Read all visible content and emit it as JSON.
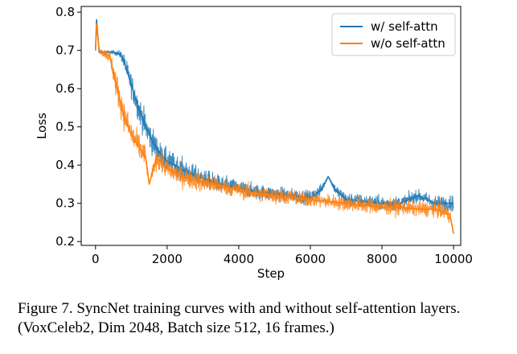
{
  "chart_data": {
    "type": "line",
    "xlabel": "Step",
    "ylabel": "Loss",
    "xlim": [
      -400,
      10200
    ],
    "ylim": [
      0.19,
      0.815
    ],
    "xticks": [
      0,
      2000,
      4000,
      6000,
      8000,
      10000
    ],
    "yticks": [
      0.2,
      0.3,
      0.4,
      0.5,
      0.6,
      0.7,
      0.8
    ],
    "grid": false,
    "legend_position": "top-right",
    "series": [
      {
        "name": "w/ self-attn",
        "color": "#1f77b4",
        "x": [
          0,
          30,
          100,
          300,
          500,
          700,
          800,
          1000,
          1200,
          1400,
          1600,
          1800,
          2000,
          2300,
          2600,
          3000,
          3500,
          4000,
          4500,
          5000,
          5500,
          6000,
          6300,
          6500,
          6700,
          7000,
          7500,
          8000,
          8500,
          9000,
          9500,
          10000
        ],
        "y": [
          0.7,
          0.78,
          0.695,
          0.695,
          0.695,
          0.69,
          0.67,
          0.61,
          0.55,
          0.5,
          0.46,
          0.43,
          0.41,
          0.395,
          0.38,
          0.365,
          0.35,
          0.34,
          0.33,
          0.325,
          0.32,
          0.315,
          0.335,
          0.37,
          0.335,
          0.31,
          0.305,
          0.3,
          0.3,
          0.32,
          0.3,
          0.3
        ],
        "noise": [
          0.0,
          0.0,
          0.005,
          0.005,
          0.005,
          0.01,
          0.02,
          0.03,
          0.035,
          0.035,
          0.035,
          0.03,
          0.03,
          0.028,
          0.026,
          0.024,
          0.022,
          0.02,
          0.02,
          0.018,
          0.018,
          0.018,
          0.015,
          0.0,
          0.015,
          0.018,
          0.018,
          0.018,
          0.018,
          0.015,
          0.02,
          0.02
        ]
      },
      {
        "name": "w/o self-attn",
        "color": "#ff7f0e",
        "x": [
          0,
          30,
          100,
          300,
          400,
          600,
          800,
          1000,
          1200,
          1400,
          1500,
          1700,
          2000,
          2300,
          2600,
          3000,
          3500,
          4000,
          4500,
          5000,
          5500,
          6000,
          6500,
          7000,
          7500,
          8000,
          8500,
          9000,
          9500,
          9900,
          10000
        ],
        "y": [
          0.7,
          0.77,
          0.7,
          0.69,
          0.685,
          0.6,
          0.53,
          0.48,
          0.45,
          0.42,
          0.35,
          0.42,
          0.39,
          0.375,
          0.365,
          0.355,
          0.345,
          0.335,
          0.325,
          0.32,
          0.315,
          0.31,
          0.305,
          0.3,
          0.295,
          0.29,
          0.29,
          0.285,
          0.285,
          0.27,
          0.22
        ],
        "noise": [
          0.0,
          0.0,
          0.008,
          0.015,
          0.02,
          0.035,
          0.035,
          0.035,
          0.035,
          0.03,
          0.0,
          0.03,
          0.028,
          0.026,
          0.025,
          0.024,
          0.022,
          0.02,
          0.02,
          0.02,
          0.019,
          0.019,
          0.019,
          0.019,
          0.019,
          0.019,
          0.019,
          0.019,
          0.02,
          0.02,
          0.0
        ]
      }
    ]
  },
  "caption": "Figure 7. SyncNet training curves with and without self-attention layers. (VoxCeleb2, Dim 2048, Batch size 512, 16 frames.)"
}
